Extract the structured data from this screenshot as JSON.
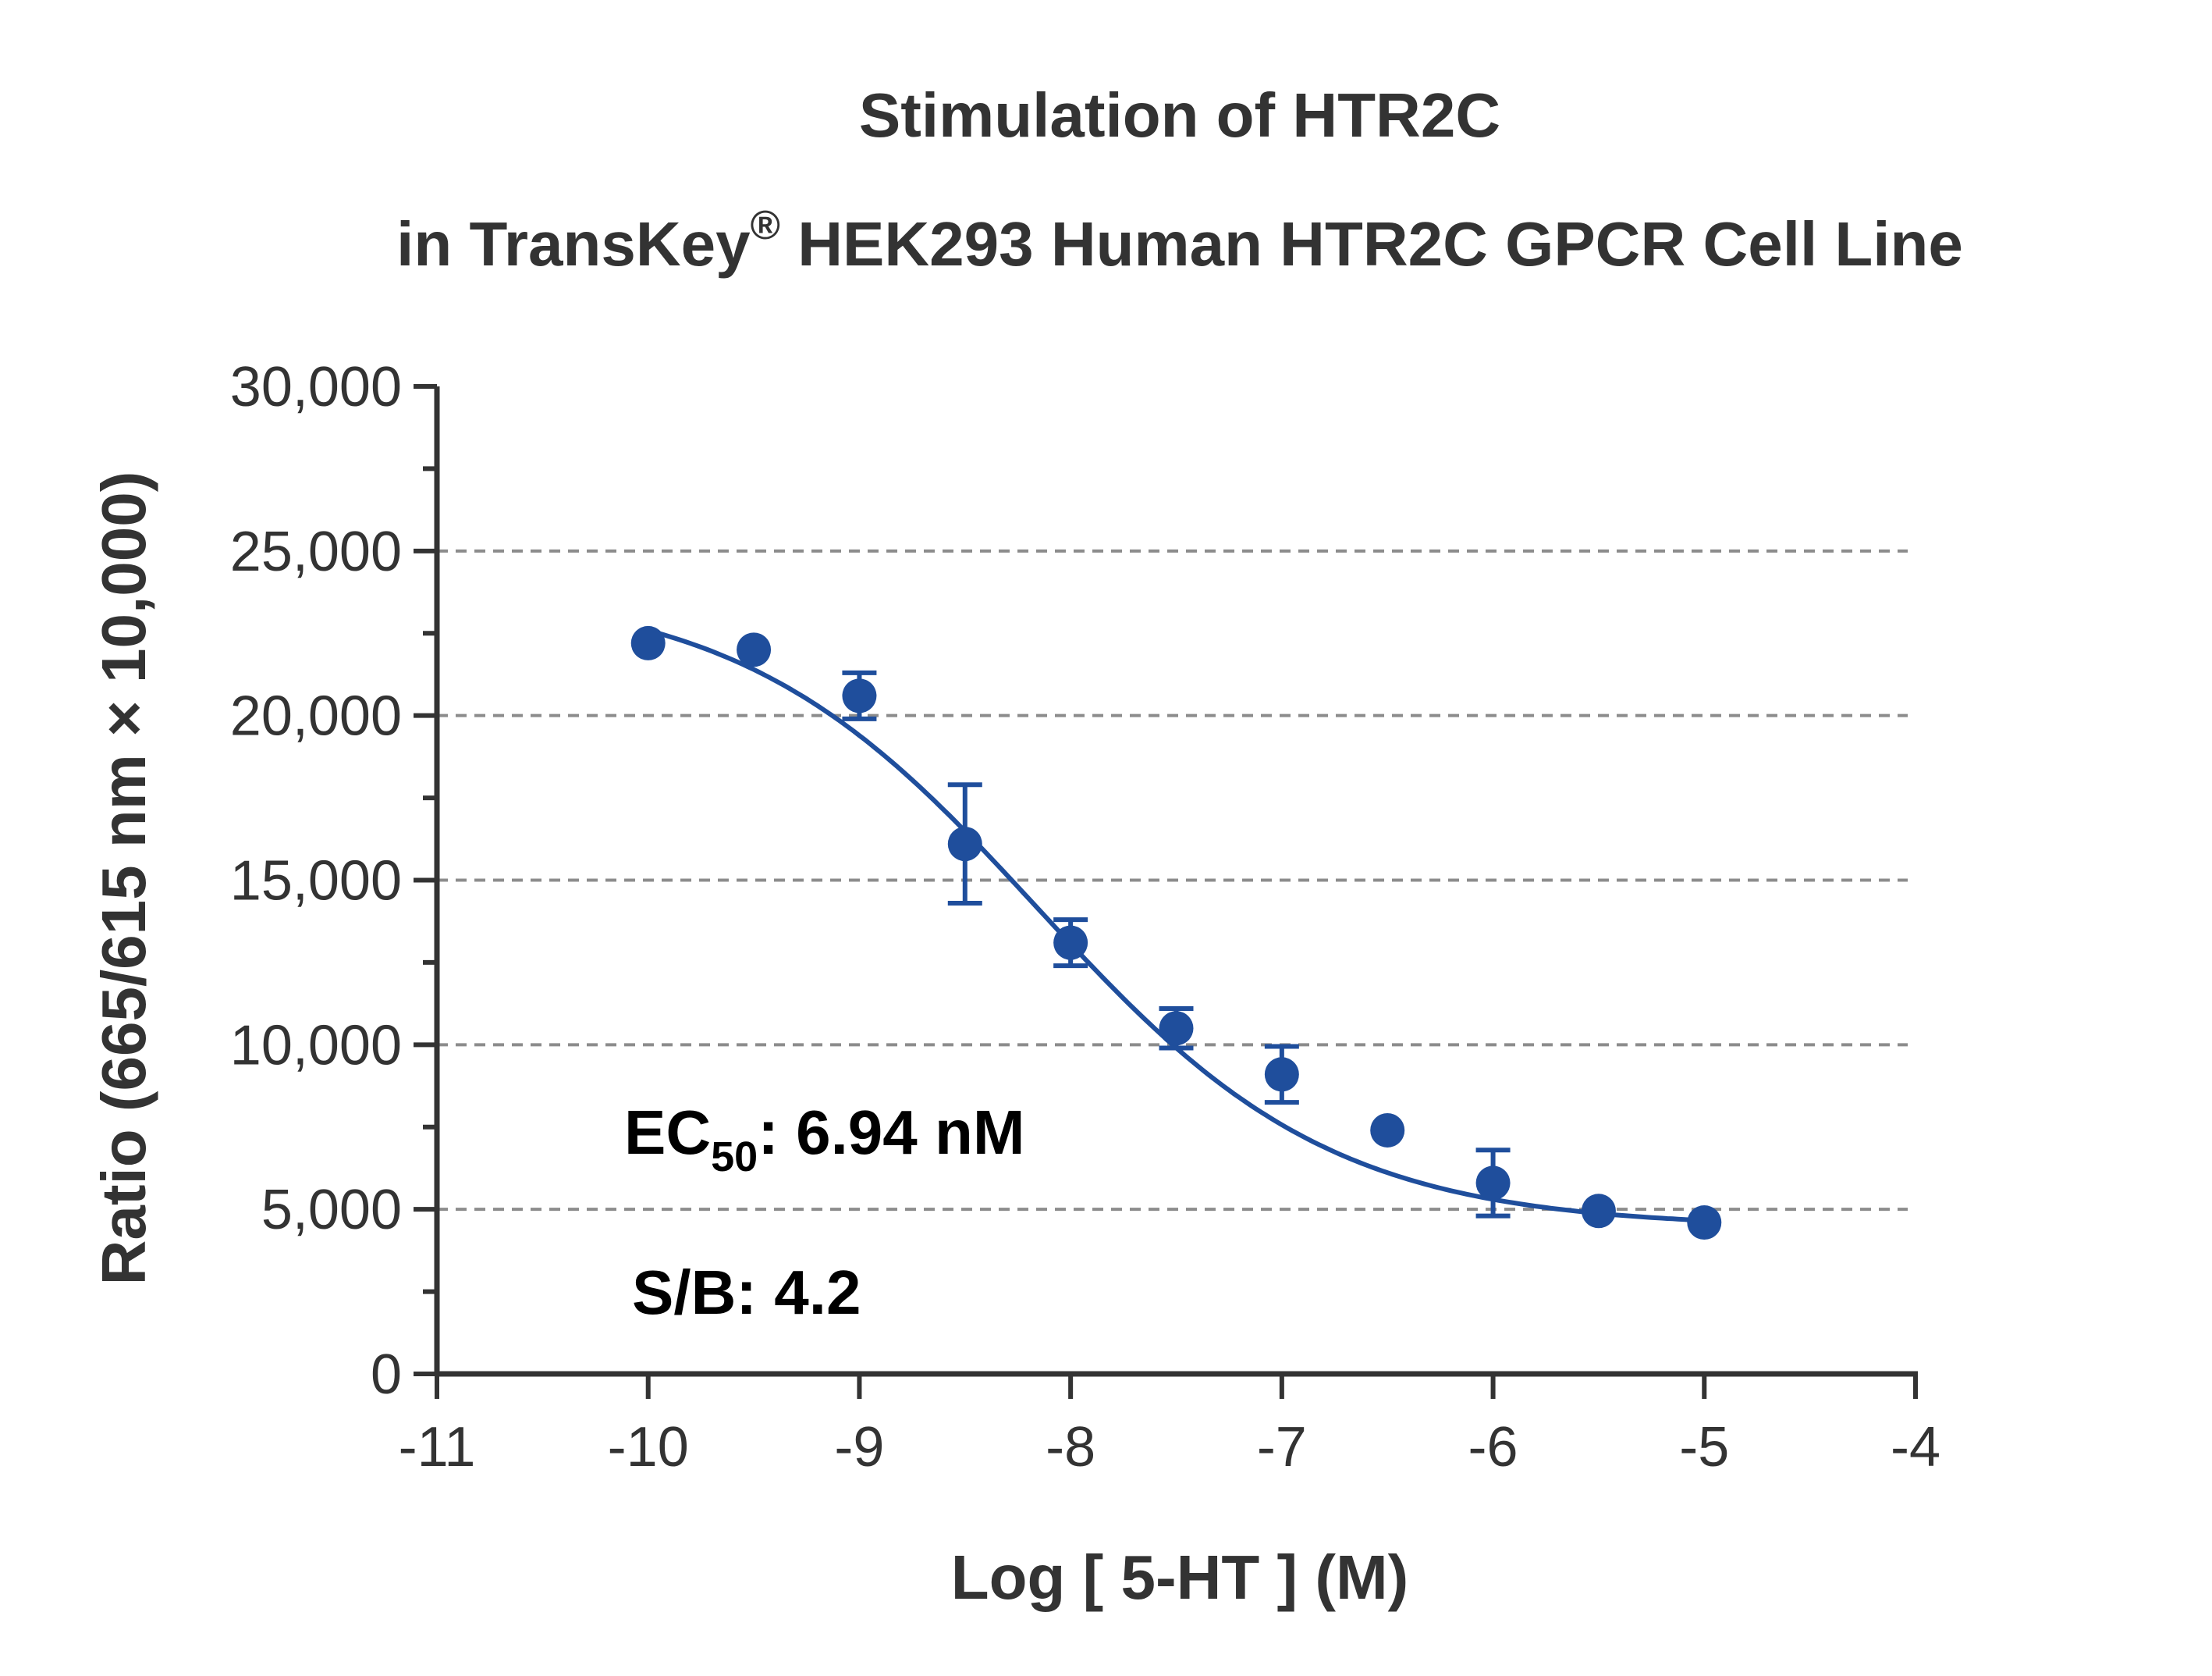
{
  "chart_data": {
    "type": "scatter",
    "title_line1": "Stimulation of  HTR2C",
    "title_line2_pre": "in TransKey",
    "title_line2_sup": "®",
    "title_line2_post": " HEK293 Human HTR2C GPCR Cell Line",
    "xlabel": "Log [ 5-HT ]  (M)",
    "ylabel": "Ratio (665/615 nm × 10,000)",
    "xlim": [
      -11,
      -4
    ],
    "ylim": [
      0,
      30000
    ],
    "x_ticks": [
      -11,
      -10,
      -9,
      -8,
      -7,
      -6,
      -5,
      -4
    ],
    "x_tick_labels": [
      "-11",
      "-10",
      "-9",
      "-8",
      "-7",
      "-6",
      "-5",
      "-4"
    ],
    "y_ticks": [
      0,
      5000,
      10000,
      15000,
      20000,
      25000,
      30000
    ],
    "y_tick_labels": [
      "0",
      "5,000",
      "10,000",
      "15,000",
      "20,000",
      "25,000",
      "30,000"
    ],
    "y_minor_step": 2500,
    "grid": "horizontal dashed at 5,000 to 25,000",
    "color": "#1f4e9c",
    "points": [
      {
        "x": -10.0,
        "y": 22200,
        "err": 0
      },
      {
        "x": -9.5,
        "y": 22000,
        "err": 0
      },
      {
        "x": -9.0,
        "y": 20600,
        "err": 700
      },
      {
        "x": -8.5,
        "y": 16100,
        "err": 1800
      },
      {
        "x": -8.0,
        "y": 13100,
        "err": 700
      },
      {
        "x": -7.5,
        "y": 10500,
        "err": 600
      },
      {
        "x": -7.0,
        "y": 9100,
        "err": 850
      },
      {
        "x": -6.5,
        "y": 7400,
        "err": 0
      },
      {
        "x": -6.0,
        "y": 5800,
        "err": 1000
      },
      {
        "x": -5.5,
        "y": 4950,
        "err": 0
      },
      {
        "x": -5.0,
        "y": 4600,
        "err": 0
      }
    ],
    "fit": {
      "top": 23900,
      "bottom": 4450,
      "log_ec50": -8.16,
      "hill_slope": -0.62,
      "x_range": [
        -10,
        -5
      ]
    },
    "annotations": {
      "ec50_pre": "EC",
      "ec50_sub": "50",
      "ec50_post": ": 6.94 nM",
      "sb": "S/B: 4.2"
    }
  }
}
